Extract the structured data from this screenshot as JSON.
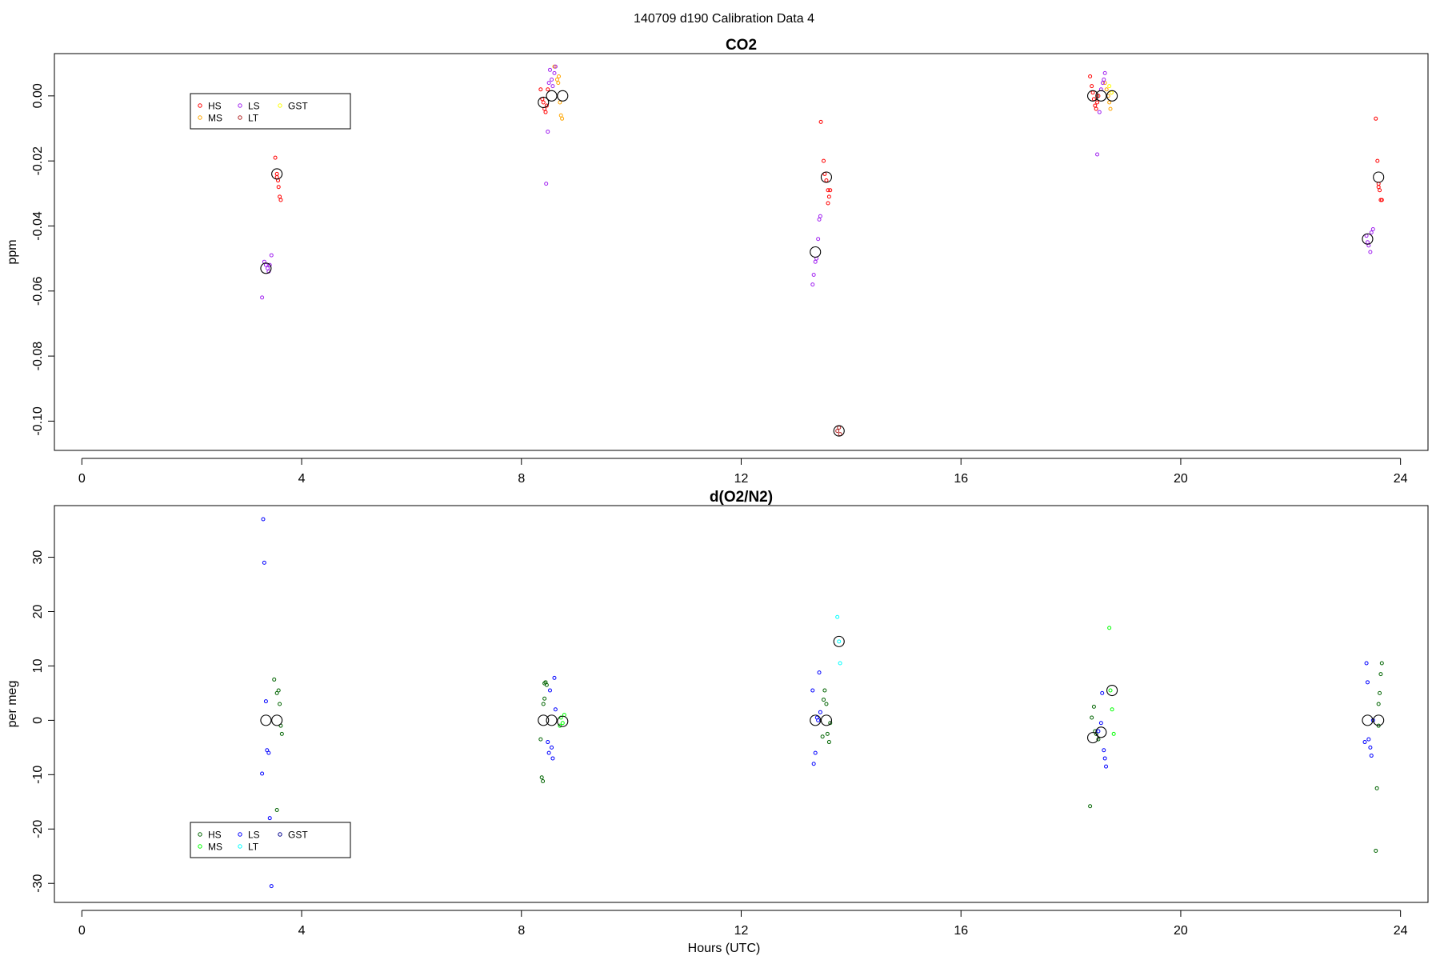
{
  "figure": {
    "title": "140709   d190   Calibration Data 4",
    "xlabel": "Hours (UTC)"
  },
  "chart_data": [
    {
      "type": "scatter",
      "title": "CO2",
      "xlabel": "",
      "ylabel": "ppm",
      "xlim": [
        -0.5,
        24.5
      ],
      "ylim": [
        -0.109,
        0.013
      ],
      "xticks": [
        0,
        4,
        8,
        12,
        16,
        20,
        24
      ],
      "yticks": [
        0.0,
        -0.02,
        -0.04,
        -0.06,
        -0.08,
        -0.1
      ],
      "ytick_labels": [
        "0.00",
        "-0.02",
        "-0.04",
        "-0.06",
        "-0.08",
        "-0.10"
      ],
      "legend": {
        "placement": "top-left",
        "entries": [
          {
            "name": "HS",
            "color": "#ff0000"
          },
          {
            "name": "MS",
            "color": "#ffa500"
          },
          {
            "name": "LS",
            "color": "#a020f0"
          },
          {
            "name": "LT",
            "color": "#b22222"
          },
          {
            "name": "GST",
            "color": "#ffff00"
          }
        ]
      },
      "series": [
        {
          "name": "HS",
          "color": "#ff0000",
          "points": [
            [
              3.52,
              -0.019
            ],
            [
              3.55,
              -0.024
            ],
            [
              3.57,
              -0.026
            ],
            [
              3.58,
              -0.028
            ],
            [
              3.6,
              -0.031
            ],
            [
              3.62,
              -0.032
            ],
            [
              3.55,
              -0.025
            ],
            [
              8.35,
              0.002
            ],
            [
              8.4,
              -0.002
            ],
            [
              8.42,
              -0.004
            ],
            [
              8.44,
              -0.005
            ],
            [
              8.46,
              -0.003
            ],
            [
              8.48,
              0.002
            ],
            [
              8.38,
              -0.001
            ],
            [
              13.45,
              -0.008
            ],
            [
              13.5,
              -0.02
            ],
            [
              13.52,
              -0.024
            ],
            [
              13.55,
              -0.026
            ],
            [
              13.58,
              -0.029
            ],
            [
              13.6,
              -0.031
            ],
            [
              13.62,
              -0.029
            ],
            [
              13.58,
              -0.033
            ],
            [
              18.35,
              0.006
            ],
            [
              18.38,
              0.003
            ],
            [
              18.4,
              0.001
            ],
            [
              18.42,
              -0.001
            ],
            [
              18.44,
              -0.003
            ],
            [
              18.46,
              -0.004
            ],
            [
              18.48,
              -0.002
            ],
            [
              18.5,
              0.0
            ],
            [
              23.55,
              -0.007
            ],
            [
              23.58,
              -0.02
            ],
            [
              23.6,
              -0.027
            ],
            [
              23.62,
              -0.029
            ],
            [
              23.64,
              -0.032
            ],
            [
              23.66,
              -0.032
            ],
            [
              23.6,
              -0.028
            ]
          ]
        },
        {
          "name": "MS",
          "color": "#ffa500",
          "points": [
            [
              8.6,
              0.009
            ],
            [
              8.65,
              0.005
            ],
            [
              8.67,
              0.004
            ],
            [
              8.7,
              -0.002
            ],
            [
              8.72,
              -0.006
            ],
            [
              8.74,
              -0.007
            ],
            [
              8.68,
              0.006
            ],
            [
              18.62,
              0.004
            ],
            [
              18.65,
              0.002
            ],
            [
              18.68,
              0.0
            ],
            [
              18.7,
              -0.002
            ],
            [
              18.72,
              -0.004
            ],
            [
              18.74,
              0.001
            ]
          ]
        },
        {
          "name": "LS",
          "color": "#a020f0",
          "points": [
            [
              3.28,
              -0.062
            ],
            [
              3.32,
              -0.051
            ],
            [
              3.35,
              -0.052
            ],
            [
              3.38,
              -0.053
            ],
            [
              3.4,
              -0.054
            ],
            [
              3.42,
              -0.052
            ],
            [
              3.45,
              -0.049
            ],
            [
              8.45,
              -0.027
            ],
            [
              8.48,
              -0.011
            ],
            [
              8.5,
              0.004
            ],
            [
              8.52,
              0.008
            ],
            [
              8.55,
              0.005
            ],
            [
              8.57,
              0.003
            ],
            [
              8.6,
              0.007
            ],
            [
              8.62,
              0.009
            ],
            [
              13.3,
              -0.058
            ],
            [
              13.32,
              -0.055
            ],
            [
              13.35,
              -0.051
            ],
            [
              13.37,
              -0.05
            ],
            [
              13.4,
              -0.044
            ],
            [
              13.42,
              -0.038
            ],
            [
              13.44,
              -0.037
            ],
            [
              18.48,
              -0.018
            ],
            [
              18.52,
              -0.005
            ],
            [
              18.55,
              0.002
            ],
            [
              18.58,
              0.004
            ],
            [
              18.6,
              0.005
            ],
            [
              18.62,
              0.007
            ],
            [
              23.38,
              -0.043
            ],
            [
              23.4,
              -0.045
            ],
            [
              23.42,
              -0.046
            ],
            [
              23.45,
              -0.048
            ],
            [
              23.47,
              -0.042
            ],
            [
              23.5,
              -0.041
            ]
          ]
        },
        {
          "name": "LT",
          "color": "#b22222",
          "points": [
            [
              13.75,
              -0.103
            ],
            [
              13.78,
              -0.102
            ],
            [
              13.8,
              -0.104
            ]
          ]
        },
        {
          "name": "GST",
          "color": "#ffff00",
          "points": [
            [
              18.7,
              0.003
            ],
            [
              18.74,
              0.001
            ]
          ]
        },
        {
          "name": "Average",
          "color": "#000000",
          "marker": "large-open-circle",
          "points": [
            [
              3.35,
              -0.053
            ],
            [
              3.55,
              -0.024
            ],
            [
              8.4,
              -0.002
            ],
            [
              8.55,
              0.0
            ],
            [
              8.75,
              0.0
            ],
            [
              13.35,
              -0.048
            ],
            [
              13.55,
              -0.025
            ],
            [
              13.78,
              -0.103
            ],
            [
              18.4,
              0.0
            ],
            [
              18.55,
              0.0
            ],
            [
              18.75,
              0.0
            ],
            [
              23.4,
              -0.044
            ],
            [
              23.6,
              -0.025
            ]
          ]
        }
      ]
    },
    {
      "type": "scatter",
      "title": "d(O2/N2)",
      "xlabel": "",
      "ylabel": "per meg",
      "xlim": [
        -0.5,
        24.5
      ],
      "ylim": [
        -33.5,
        39.5
      ],
      "xticks": [
        0,
        4,
        8,
        12,
        16,
        20,
        24
      ],
      "yticks": [
        30,
        20,
        10,
        0,
        -10,
        -20,
        -30
      ],
      "ytick_labels": [
        "30",
        "20",
        "10",
        "0",
        "-10",
        "-20",
        "-30"
      ],
      "legend": {
        "placement": "bottom-left",
        "entries": [
          {
            "name": "HS",
            "color": "#006400"
          },
          {
            "name": "MS",
            "color": "#00ff00"
          },
          {
            "name": "LS",
            "color": "#0000ff"
          },
          {
            "name": "LT",
            "color": "#00ffff"
          },
          {
            "name": "GST",
            "color": "#00008b"
          }
        ]
      },
      "series": [
        {
          "name": "HS",
          "color": "#006400",
          "points": [
            [
              3.5,
              7.5
            ],
            [
              3.55,
              5.0
            ],
            [
              3.58,
              5.5
            ],
            [
              3.6,
              3.0
            ],
            [
              3.62,
              -1.0
            ],
            [
              3.64,
              -2.5
            ],
            [
              3.55,
              -16.5
            ],
            [
              8.35,
              -3.5
            ],
            [
              8.37,
              -10.5
            ],
            [
              8.39,
              -11.2
            ],
            [
              8.4,
              3.0
            ],
            [
              8.42,
              4.0
            ],
            [
              8.44,
              7.0
            ],
            [
              8.46,
              6.5
            ],
            [
              8.42,
              6.8
            ],
            [
              13.48,
              -3.0
            ],
            [
              13.5,
              3.8
            ],
            [
              13.52,
              5.5
            ],
            [
              13.55,
              3.0
            ],
            [
              13.57,
              -2.5
            ],
            [
              13.6,
              -4.0
            ],
            [
              13.62,
              -0.5
            ],
            [
              18.35,
              -15.8
            ],
            [
              18.38,
              0.5
            ],
            [
              18.42,
              2.5
            ],
            [
              18.44,
              -2.0
            ],
            [
              18.46,
              -2.5
            ],
            [
              18.5,
              -3.5
            ],
            [
              23.55,
              -24.0
            ],
            [
              23.57,
              -12.5
            ],
            [
              23.6,
              -1.0
            ],
            [
              23.62,
              5.0
            ],
            [
              23.64,
              8.5
            ],
            [
              23.66,
              10.5
            ],
            [
              23.6,
              3.0
            ]
          ]
        },
        {
          "name": "MS",
          "color": "#00ff00",
          "points": [
            [
              8.7,
              -1.0
            ],
            [
              8.72,
              0.5
            ],
            [
              8.75,
              -0.5
            ],
            [
              8.78,
              1.0
            ],
            [
              18.7,
              17.0
            ],
            [
              18.72,
              5.5
            ],
            [
              18.75,
              2.0
            ],
            [
              18.78,
              -2.5
            ]
          ]
        },
        {
          "name": "LS",
          "color": "#0000ff",
          "points": [
            [
              3.3,
              37.0
            ],
            [
              3.32,
              29.0
            ],
            [
              3.28,
              -9.8
            ],
            [
              3.35,
              3.5
            ],
            [
              3.37,
              -5.5
            ],
            [
              3.4,
              -6.0
            ],
            [
              3.42,
              -18.0
            ],
            [
              3.45,
              -30.5
            ],
            [
              8.48,
              -4.0
            ],
            [
              8.5,
              -6.0
            ],
            [
              8.52,
              5.5
            ],
            [
              8.55,
              -5.0
            ],
            [
              8.57,
              -7.0
            ],
            [
              8.6,
              7.8
            ],
            [
              8.62,
              2.0
            ],
            [
              13.3,
              5.5
            ],
            [
              13.32,
              -8.0
            ],
            [
              13.35,
              -6.0
            ],
            [
              13.38,
              0.5
            ],
            [
              13.4,
              0.0
            ],
            [
              13.42,
              8.8
            ],
            [
              13.44,
              1.5
            ],
            [
              18.5,
              -2.0
            ],
            [
              18.55,
              -0.5
            ],
            [
              18.57,
              5.0
            ],
            [
              18.6,
              -5.5
            ],
            [
              18.62,
              -7.0
            ],
            [
              18.64,
              -8.5
            ],
            [
              23.35,
              -4.0
            ],
            [
              23.38,
              10.5
            ],
            [
              23.4,
              7.0
            ],
            [
              23.42,
              -3.5
            ],
            [
              23.45,
              -5.0
            ],
            [
              23.47,
              -6.5
            ],
            [
              23.5,
              0.0
            ]
          ]
        },
        {
          "name": "LT",
          "color": "#00ffff",
          "points": [
            [
              13.75,
              19.0
            ],
            [
              13.78,
              14.5
            ],
            [
              13.8,
              10.5
            ]
          ]
        },
        {
          "name": "GST",
          "color": "#00008b",
          "points": []
        },
        {
          "name": "Average",
          "color": "#000000",
          "marker": "large-open-circle",
          "points": [
            [
              3.35,
              0.0
            ],
            [
              3.55,
              0.0
            ],
            [
              8.4,
              0.0
            ],
            [
              8.55,
              0.0
            ],
            [
              8.75,
              -0.2
            ],
            [
              13.35,
              0.0
            ],
            [
              13.55,
              0.0
            ],
            [
              13.78,
              14.5
            ],
            [
              18.4,
              -3.2
            ],
            [
              18.55,
              -2.2
            ],
            [
              18.75,
              5.5
            ],
            [
              23.4,
              0.0
            ],
            [
              23.6,
              0.0
            ]
          ]
        }
      ]
    }
  ]
}
